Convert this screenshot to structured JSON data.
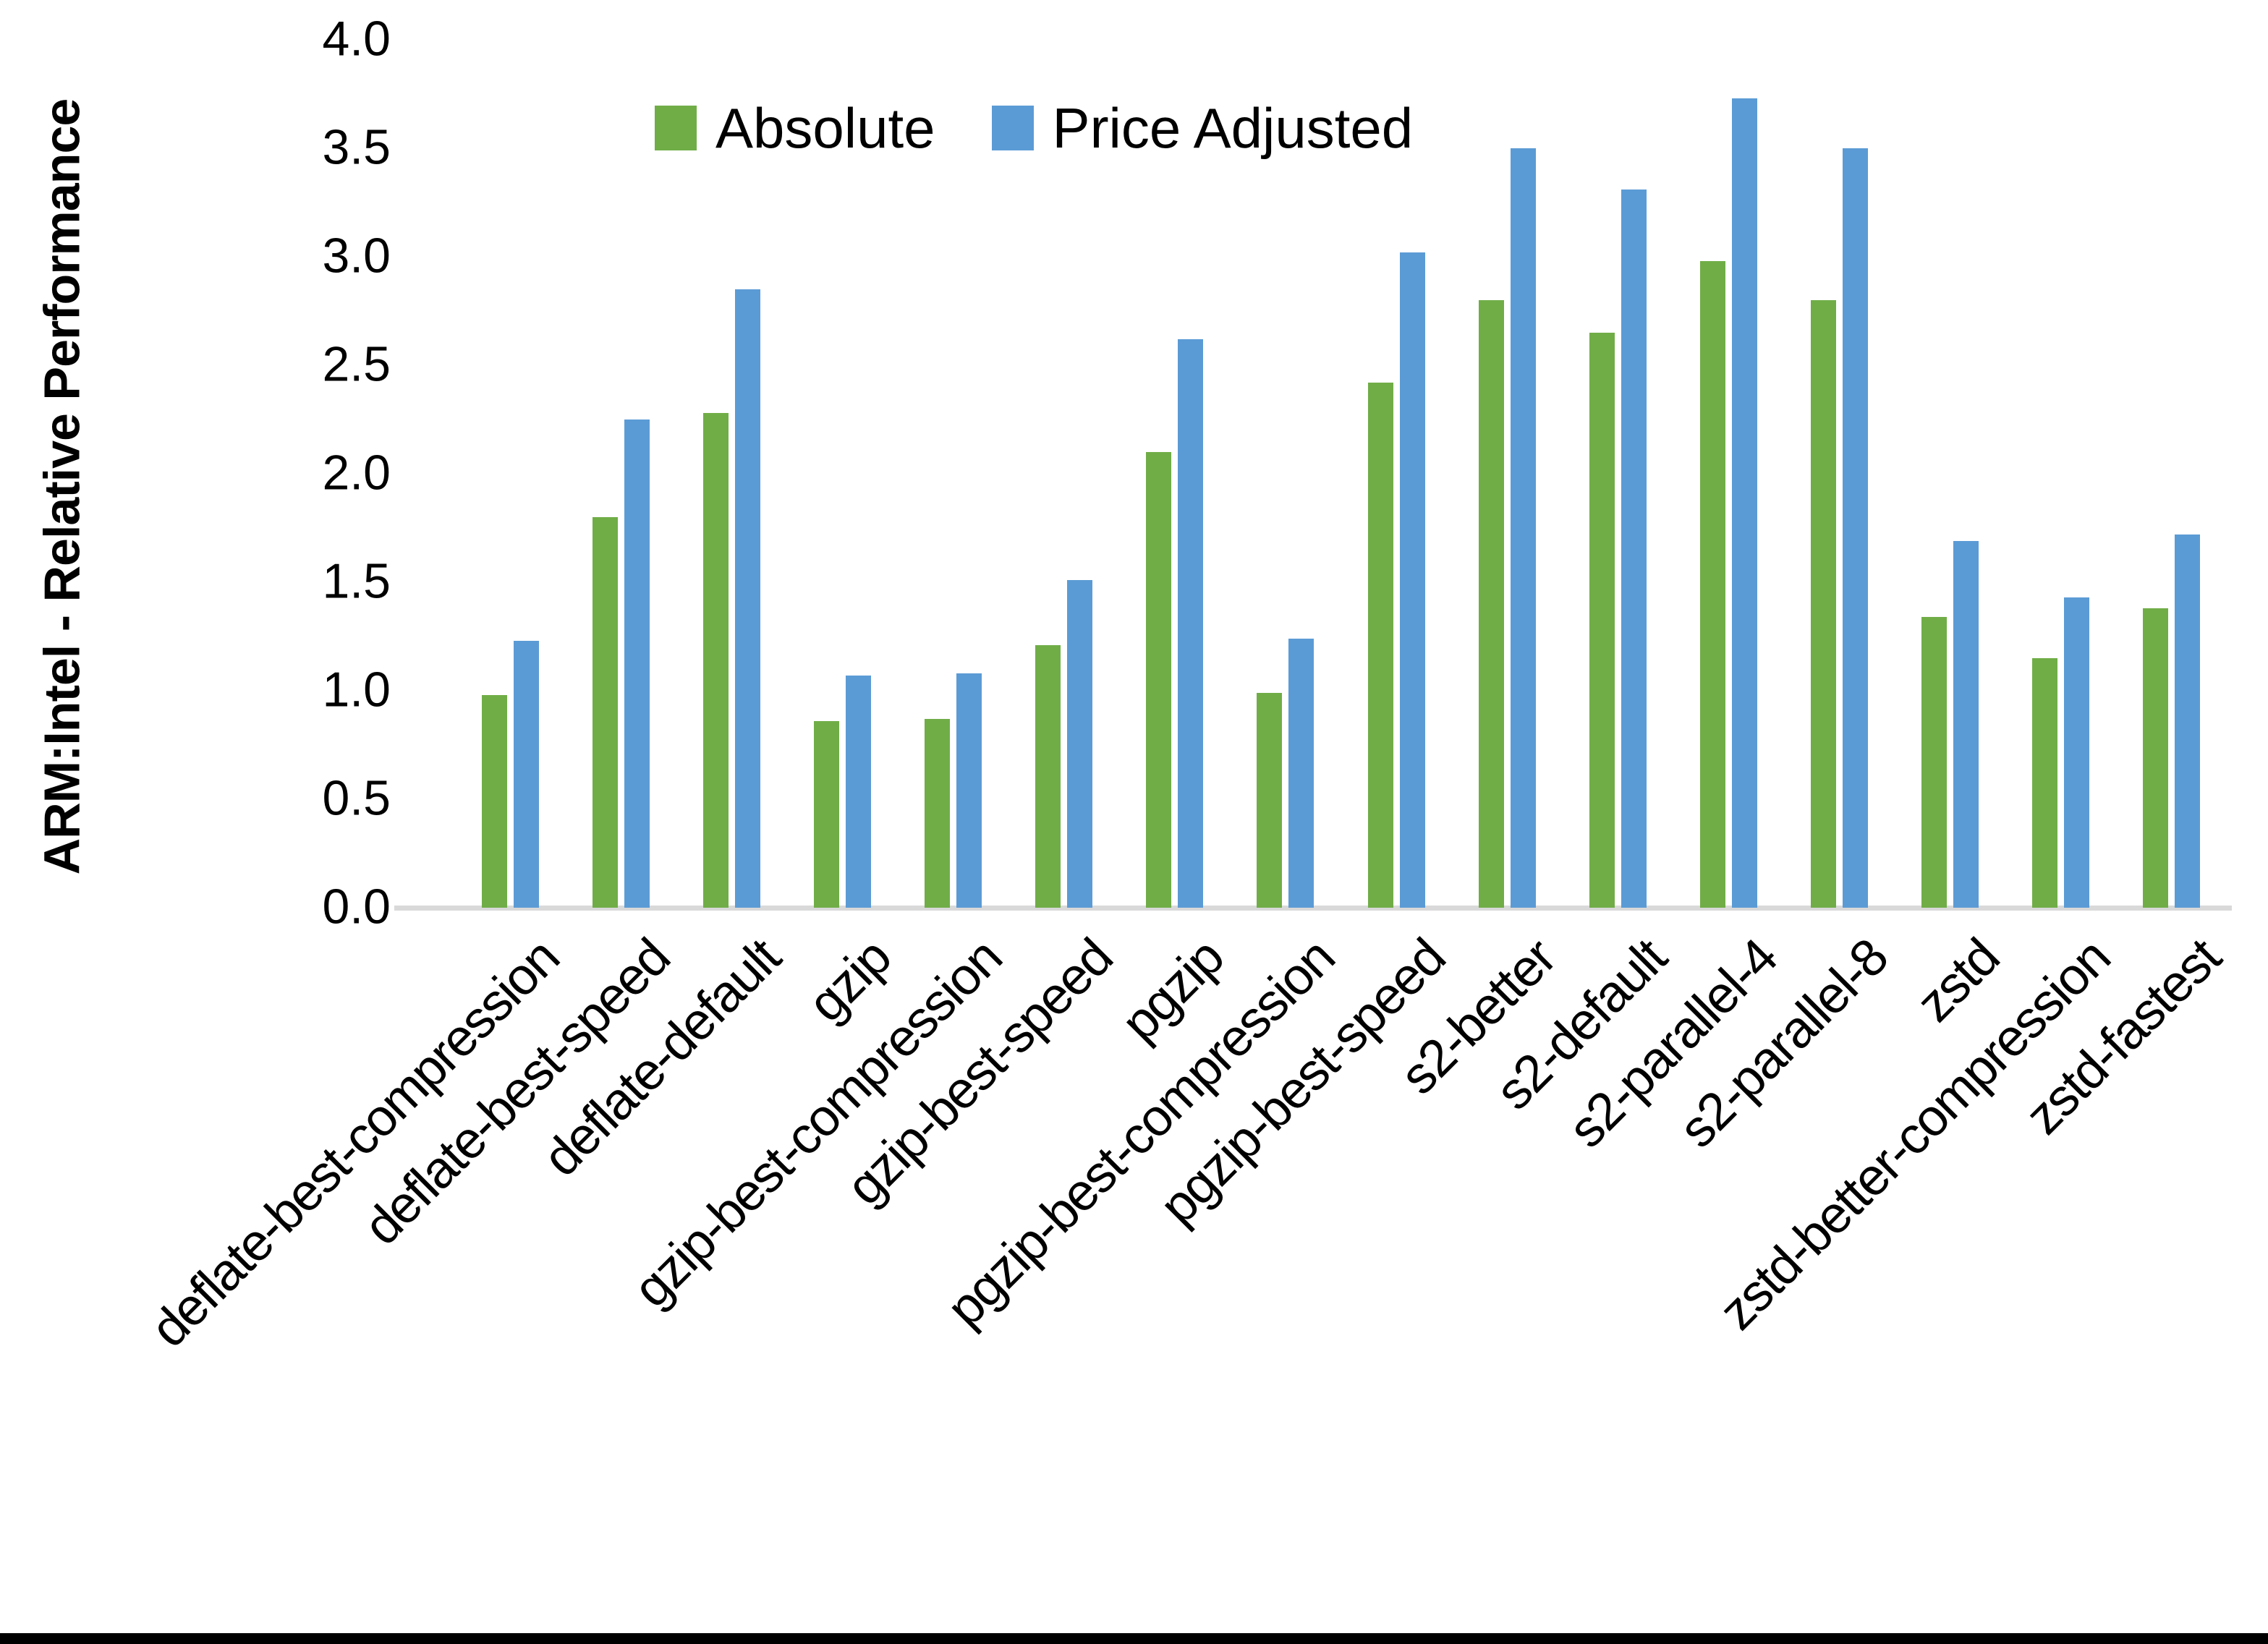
{
  "figure": {
    "background_color": "#FFFFFF",
    "bottom_border_color": "#000000"
  },
  "y_axis": {
    "title": "ARM:Intel - Relative Performance",
    "tick_labels": [
      "4.0",
      "3.5",
      "3.0",
      "2.5",
      "2.0",
      "1.5",
      "1.0",
      "0.5",
      "0.0"
    ]
  },
  "chart_data": {
    "type": "bar",
    "title": "",
    "xlabel": "",
    "ylabel": "ARM:Intel - Relative Performance",
    "ylim": [
      0.0,
      4.0
    ],
    "ytick_step": 0.5,
    "grid": false,
    "legend_position": "top-center",
    "x_label_rotation_deg": 45,
    "axis_line_color": "#D9D9D9",
    "categories": [
      "deflate-best-compression",
      "deflate-best-speed",
      "deflate-default",
      "gzip",
      "gzip-best-compression",
      "gzip-best-speed",
      "pgzip",
      "pgzip-best-compression",
      "pgzip-best-speed",
      "s2-better",
      "s2-default",
      "s2-parallel-4",
      "s2-parallel-8",
      "zstd",
      "zstd-better-compression",
      "zstd-fastest"
    ],
    "series": [
      {
        "name": "Absolute",
        "color": "#70AD47",
        "values": [
          0.98,
          1.8,
          2.28,
          0.86,
          0.87,
          1.21,
          2.1,
          0.99,
          2.42,
          2.8,
          2.65,
          2.98,
          2.8,
          1.34,
          1.15,
          1.38
        ]
      },
      {
        "name": "Price Adjusted",
        "color": "#5B9BD5",
        "values": [
          1.23,
          2.25,
          2.85,
          1.07,
          1.08,
          1.51,
          2.62,
          1.24,
          3.02,
          3.5,
          3.31,
          3.73,
          3.5,
          1.69,
          1.43,
          1.72
        ]
      }
    ]
  }
}
